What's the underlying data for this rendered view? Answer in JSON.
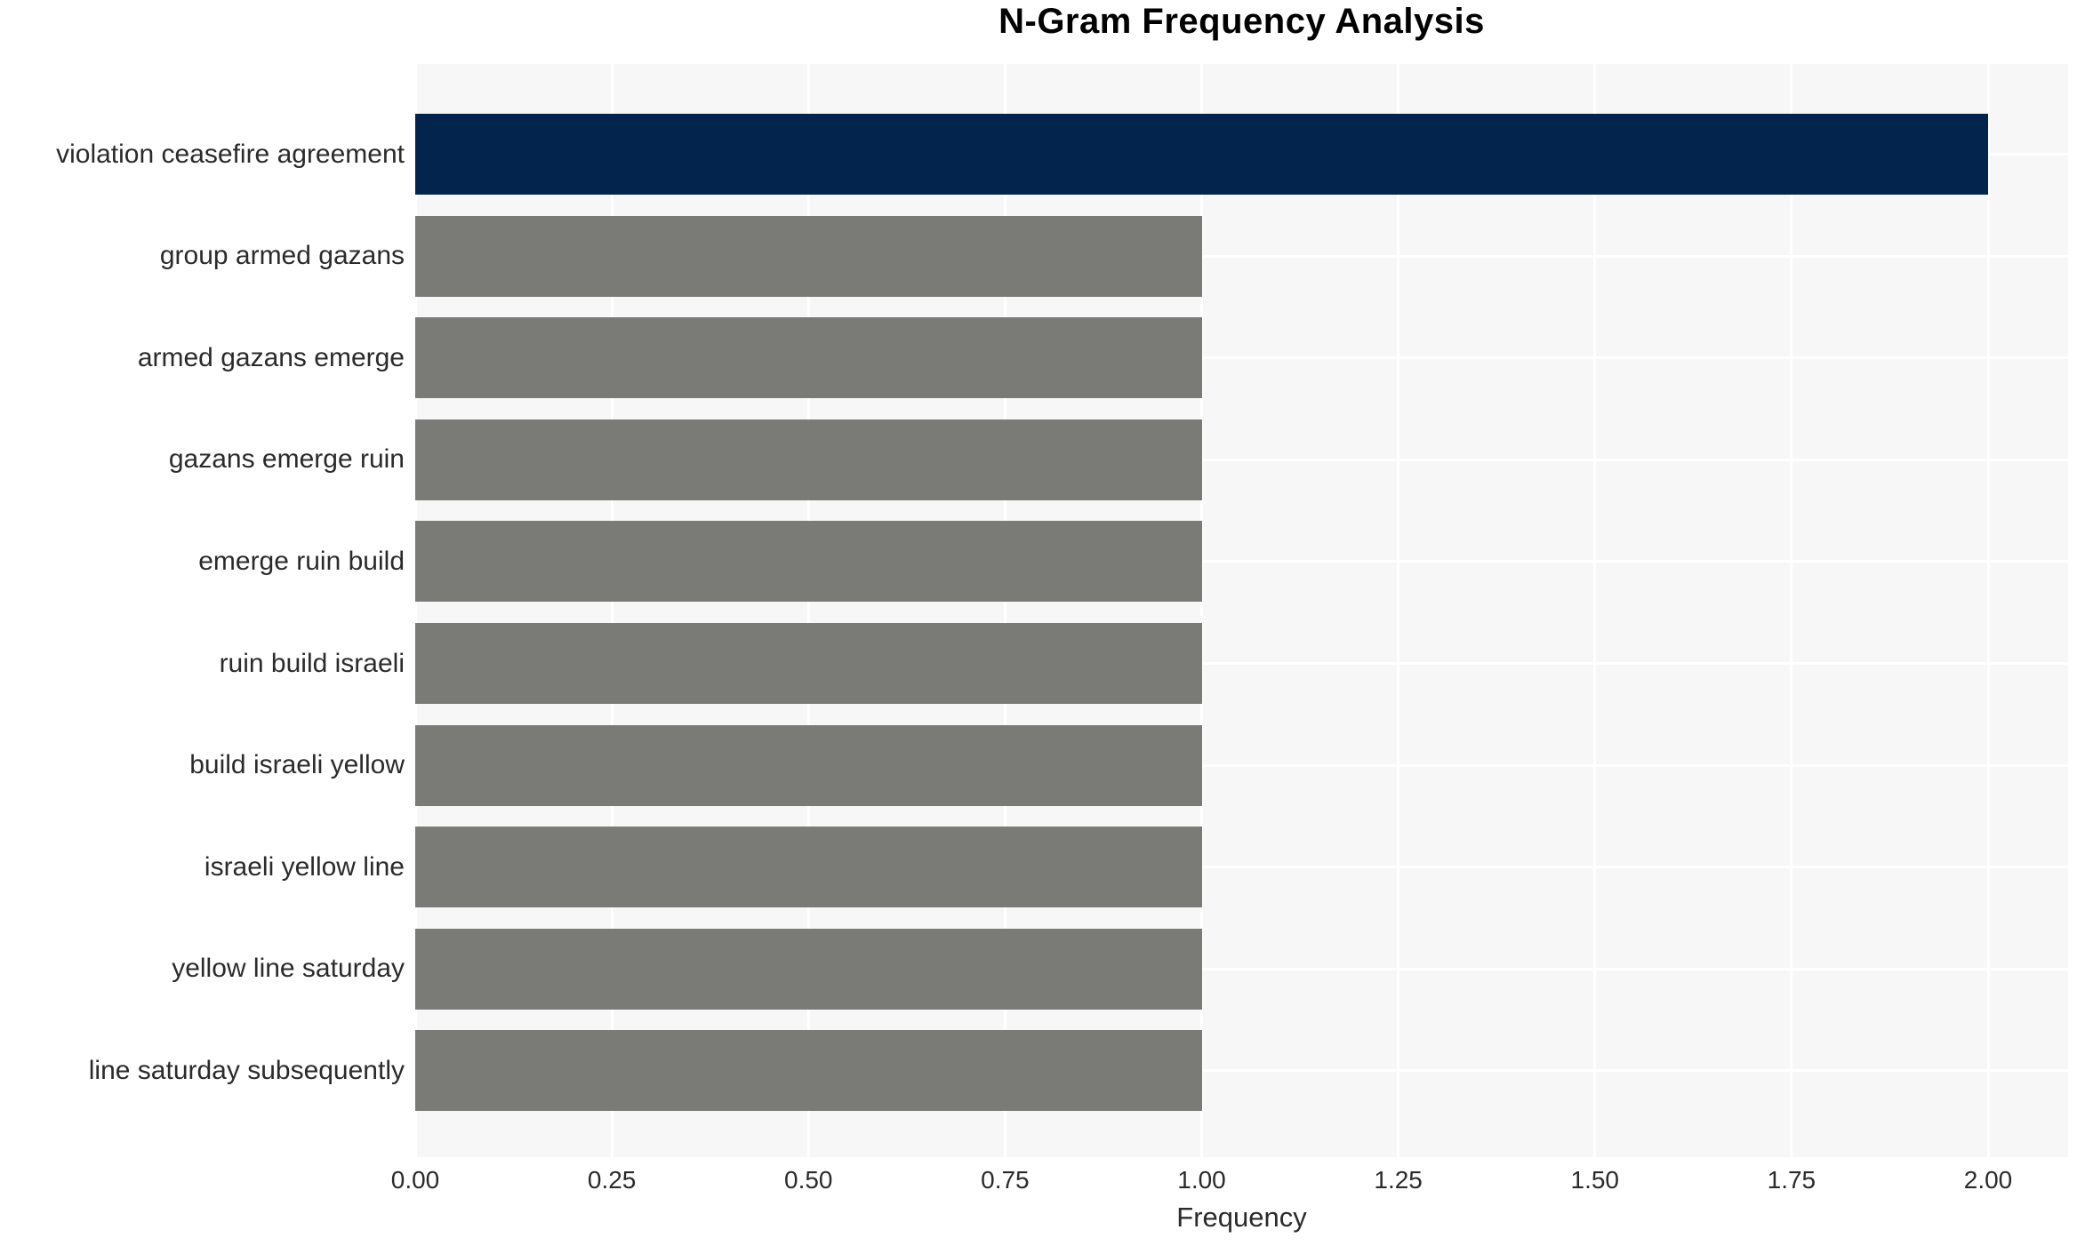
{
  "chart_data": {
    "type": "bar",
    "orientation": "horizontal",
    "title": "N-Gram Frequency Analysis",
    "xlabel": "Frequency",
    "ylabel": "",
    "categories": [
      "violation ceasefire agreement",
      "group armed gazans",
      "armed gazans emerge",
      "gazans emerge ruin",
      "emerge ruin build",
      "ruin build israeli",
      "build israeli yellow",
      "israeli yellow line",
      "yellow line saturday",
      "line saturday subsequently"
    ],
    "values": [
      2,
      1,
      1,
      1,
      1,
      1,
      1,
      1,
      1,
      1
    ],
    "bar_colors": [
      "#02244d",
      "#7a7b77",
      "#7a7b77",
      "#7a7b77",
      "#7a7b77",
      "#7a7b77",
      "#7a7b77",
      "#7a7b77",
      "#7a7b77",
      "#7a7b77"
    ],
    "xlim": [
      0,
      2.1
    ],
    "xticks": {
      "values": [
        0,
        0.25,
        0.5,
        0.75,
        1.0,
        1.25,
        1.5,
        1.75,
        2.0
      ],
      "labels": [
        "0.00",
        "0.25",
        "0.50",
        "0.75",
        "1.00",
        "1.25",
        "1.50",
        "1.75",
        "2.00"
      ]
    },
    "grid": true,
    "legend": false,
    "colors": {
      "highlight_bar": "#02244d",
      "default_bar": "#7a7b77",
      "plot_background": "#f7f7f7",
      "gridline": "#ffffff",
      "text": "#2b2b2b",
      "title_text": "#000000"
    }
  }
}
